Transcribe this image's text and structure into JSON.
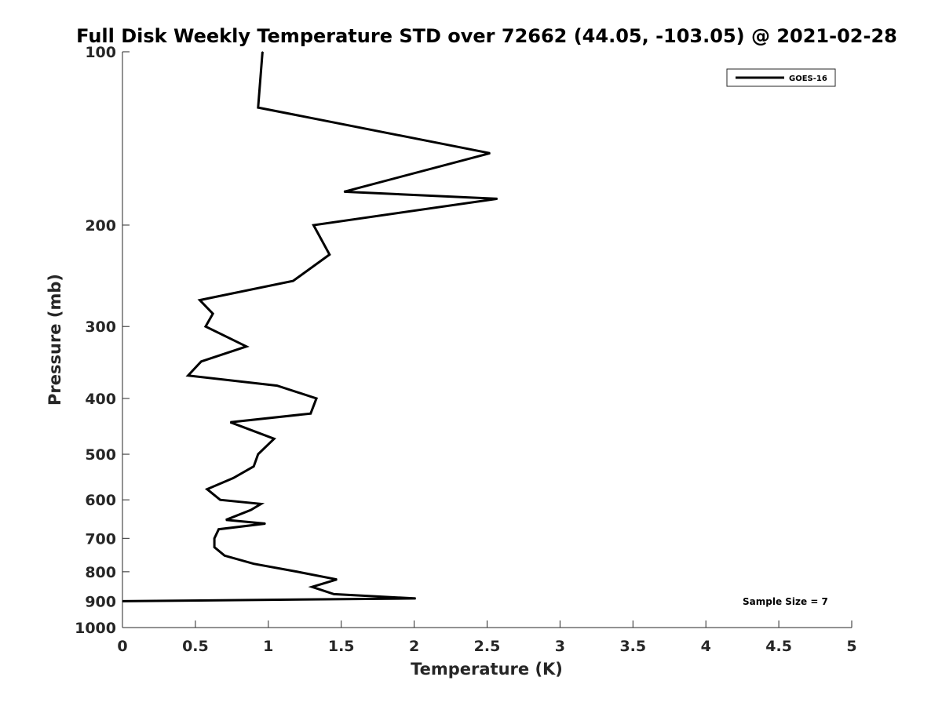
{
  "chart_data": {
    "type": "line",
    "title": "Full Disk Weekly Temperature STD over 72662 (44.05, -103.05) @ 2021-02-28",
    "xlabel": "Temperature (K)",
    "ylabel": "Pressure (mb)",
    "xlim": [
      0,
      5
    ],
    "ylim": [
      100,
      1000
    ],
    "yscale": "log",
    "y_reversed": true,
    "grid": false,
    "legend_position": "top-right",
    "xticks": [
      "0",
      "0.5",
      "1",
      "1.5",
      "2",
      "2.5",
      "3",
      "3.5",
      "4",
      "4.5",
      "5"
    ],
    "yticks": [
      "100",
      "200",
      "300",
      "400",
      "500",
      "600",
      "700",
      "800",
      "900",
      "1000"
    ],
    "series": [
      {
        "name": "GOES-16",
        "color": "#000000",
        "points": [
          {
            "x": 0.96,
            "y": 100
          },
          {
            "x": 0.93,
            "y": 125
          },
          {
            "x": 2.52,
            "y": 150
          },
          {
            "x": 1.52,
            "y": 175
          },
          {
            "x": 2.57,
            "y": 180
          },
          {
            "x": 1.31,
            "y": 200
          },
          {
            "x": 1.42,
            "y": 225
          },
          {
            "x": 1.17,
            "y": 250
          },
          {
            "x": 0.53,
            "y": 270
          },
          {
            "x": 0.62,
            "y": 285
          },
          {
            "x": 0.57,
            "y": 300
          },
          {
            "x": 0.85,
            "y": 325
          },
          {
            "x": 0.54,
            "y": 345
          },
          {
            "x": 0.45,
            "y": 365
          },
          {
            "x": 1.06,
            "y": 380
          },
          {
            "x": 1.33,
            "y": 400
          },
          {
            "x": 1.29,
            "y": 425
          },
          {
            "x": 0.74,
            "y": 440
          },
          {
            "x": 1.04,
            "y": 470
          },
          {
            "x": 0.93,
            "y": 500
          },
          {
            "x": 0.9,
            "y": 525
          },
          {
            "x": 0.76,
            "y": 550
          },
          {
            "x": 0.58,
            "y": 575
          },
          {
            "x": 0.67,
            "y": 600
          },
          {
            "x": 0.95,
            "y": 610
          },
          {
            "x": 0.88,
            "y": 625
          },
          {
            "x": 0.71,
            "y": 650
          },
          {
            "x": 0.98,
            "y": 660
          },
          {
            "x": 0.66,
            "y": 675
          },
          {
            "x": 0.63,
            "y": 700
          },
          {
            "x": 0.63,
            "y": 725
          },
          {
            "x": 0.7,
            "y": 750
          },
          {
            "x": 0.9,
            "y": 775
          },
          {
            "x": 1.2,
            "y": 800
          },
          {
            "x": 1.47,
            "y": 825
          },
          {
            "x": 1.3,
            "y": 850
          },
          {
            "x": 1.45,
            "y": 875
          },
          {
            "x": 2.01,
            "y": 890
          },
          {
            "x": 0.0,
            "y": 900
          }
        ]
      }
    ],
    "annotations": [
      "Sample Size = 7"
    ]
  }
}
